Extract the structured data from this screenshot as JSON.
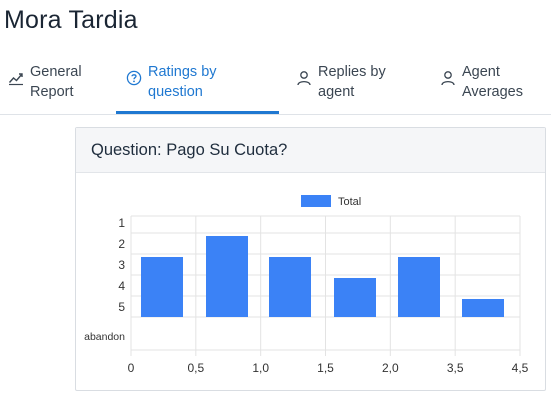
{
  "page": {
    "title": "Mora Tardia"
  },
  "tabs": [
    {
      "label": "General Report",
      "icon": "line-chart-icon",
      "active": false
    },
    {
      "label": "Ratings by question",
      "icon": "question-circle-icon",
      "active": true
    },
    {
      "label": "Replies by agent",
      "icon": "user-icon",
      "active": false
    },
    {
      "label": "Agent Averages",
      "icon": "user-icon",
      "active": false
    }
  ],
  "card": {
    "title": "Question: Pago Su Cuota?"
  },
  "colors": {
    "accent": "#1f78d1",
    "bar": "#3b82f6"
  },
  "chart_data": {
    "type": "bar",
    "title": "",
    "xlabel": "",
    "ylabel": "",
    "legend": {
      "position": "top",
      "entries": [
        "Total"
      ]
    },
    "series": [
      {
        "name": "Total",
        "bars": [
          {
            "start": 0.25,
            "end": 0.75,
            "baseline_category": "5",
            "top_category": "3"
          },
          {
            "start": 0.75,
            "end": 1.25,
            "baseline_category": "5",
            "top_category": "2"
          },
          {
            "start": 1.25,
            "end": 1.75,
            "baseline_category": "5",
            "top_category": "3"
          },
          {
            "start": 1.75,
            "end": 2.25,
            "baseline_category": "5",
            "top_category": "4"
          },
          {
            "start": 2.25,
            "end": 2.75,
            "baseline_category": "5",
            "top_category": "3"
          },
          {
            "start": 2.75,
            "end": 3.25,
            "baseline_category": "5",
            "top_category": "5"
          }
        ]
      }
    ],
    "y_categories": [
      "1",
      "2",
      "3",
      "4",
      "5",
      "abandon"
    ],
    "x_ticks": [
      "0",
      "0,5",
      "1,0",
      "1,5",
      "2,0",
      "3,5",
      "4,5"
    ],
    "grid": true
  }
}
